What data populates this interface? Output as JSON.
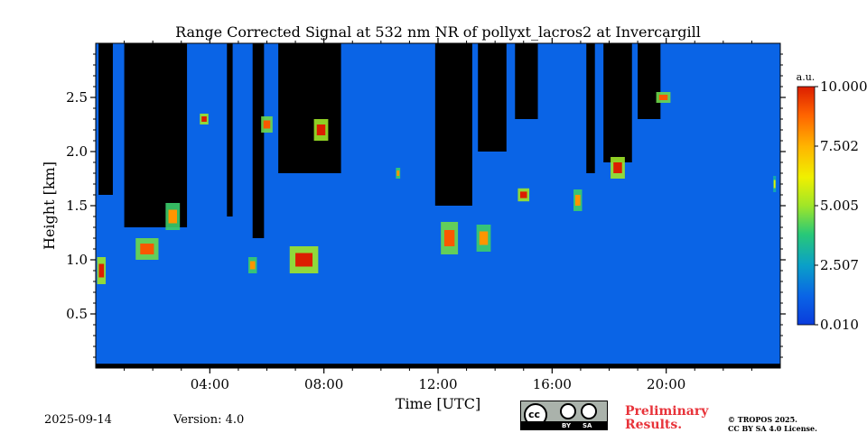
{
  "chart_data": {
    "type": "heatmap",
    "title": "Range Corrected Signal at 532 nm NR of pollyxt_lacros2 at Invercargill",
    "xlabel": "Time [UTC]",
    "ylabel": "Height [km]",
    "xlim_hours": [
      0,
      24
    ],
    "ylim_km": [
      0,
      3.0
    ],
    "x_ticks": [
      {
        "h": 4,
        "label": "04:00"
      },
      {
        "h": 8,
        "label": "08:00"
      },
      {
        "h": 12,
        "label": "12:00"
      },
      {
        "h": 16,
        "label": "16:00"
      },
      {
        "h": 20,
        "label": "20:00"
      }
    ],
    "y_ticks": [
      {
        "v": 0.5,
        "label": "0.5"
      },
      {
        "v": 1.0,
        "label": "1.0"
      },
      {
        "v": 1.5,
        "label": "1.5"
      },
      {
        "v": 2.0,
        "label": "2.0"
      },
      {
        "v": 2.5,
        "label": "2.5"
      }
    ],
    "colorbar": {
      "unit": "a.u.",
      "min": 0.01,
      "max": 10.0,
      "ticks": [
        "0.010",
        "2.507",
        "5.005",
        "7.502",
        "10.000"
      ],
      "colormap": "jet"
    },
    "background_level": 1.2,
    "no_signal_regions": [
      {
        "t0": 0.1,
        "t1": 0.6,
        "h": 1.6
      },
      {
        "t0": 1.0,
        "t1": 3.2,
        "h": 1.3
      },
      {
        "t0": 4.6,
        "t1": 4.8,
        "h": 1.4
      },
      {
        "t0": 5.5,
        "t1": 5.9,
        "h": 1.2
      },
      {
        "t0": 6.4,
        "t1": 8.6,
        "h": 1.8
      },
      {
        "t0": 11.9,
        "t1": 13.2,
        "h": 1.5
      },
      {
        "t0": 13.4,
        "t1": 14.4,
        "h": 2.0
      },
      {
        "t0": 14.7,
        "t1": 15.5,
        "h": 2.3
      },
      {
        "t0": 17.2,
        "t1": 17.5,
        "h": 1.8
      },
      {
        "t0": 17.8,
        "t1": 18.8,
        "h": 1.9
      },
      {
        "t0": 19.0,
        "t1": 19.8,
        "h": 2.3
      }
    ],
    "cloud_features": [
      {
        "t": 0.2,
        "h": 0.9,
        "w": 0.3,
        "d": 0.25,
        "v": 10
      },
      {
        "t": 1.8,
        "h": 1.1,
        "w": 0.8,
        "d": 0.2,
        "v": 9
      },
      {
        "t": 2.7,
        "h": 1.4,
        "w": 0.5,
        "d": 0.25,
        "v": 8
      },
      {
        "t": 3.8,
        "h": 2.3,
        "w": 0.3,
        "d": 0.1,
        "v": 10
      },
      {
        "t": 5.5,
        "h": 0.95,
        "w": 0.3,
        "d": 0.15,
        "v": 8
      },
      {
        "t": 6.0,
        "h": 2.25,
        "w": 0.4,
        "d": 0.15,
        "v": 9
      },
      {
        "t": 7.3,
        "h": 1.0,
        "w": 1.0,
        "d": 0.25,
        "v": 10
      },
      {
        "t": 7.9,
        "h": 2.2,
        "w": 0.5,
        "d": 0.2,
        "v": 10
      },
      {
        "t": 10.6,
        "h": 1.8,
        "w": 0.15,
        "d": 0.1,
        "v": 8
      },
      {
        "t": 12.4,
        "h": 1.2,
        "w": 0.6,
        "d": 0.3,
        "v": 9
      },
      {
        "t": 13.6,
        "h": 1.2,
        "w": 0.5,
        "d": 0.25,
        "v": 8
      },
      {
        "t": 15.0,
        "h": 1.6,
        "w": 0.4,
        "d": 0.12,
        "v": 10
      },
      {
        "t": 16.9,
        "h": 1.55,
        "w": 0.3,
        "d": 0.2,
        "v": 8
      },
      {
        "t": 18.3,
        "h": 1.85,
        "w": 0.5,
        "d": 0.2,
        "v": 10
      },
      {
        "t": 19.9,
        "h": 2.5,
        "w": 0.5,
        "d": 0.1,
        "v": 9
      },
      {
        "t": 23.8,
        "h": 1.7,
        "w": 0.1,
        "d": 0.15,
        "v": 6
      }
    ]
  },
  "footer": {
    "date": "2025-09-14",
    "version": "Version: 4.0",
    "preliminary_line1": "Preliminary",
    "preliminary_line2": "Results.",
    "license_line1": "© TROPOS 2025.",
    "license_line2": "CC BY SA 4.0 License.",
    "cc_badge": {
      "cc": "cc",
      "by": "BY",
      "sa": "SA"
    }
  }
}
